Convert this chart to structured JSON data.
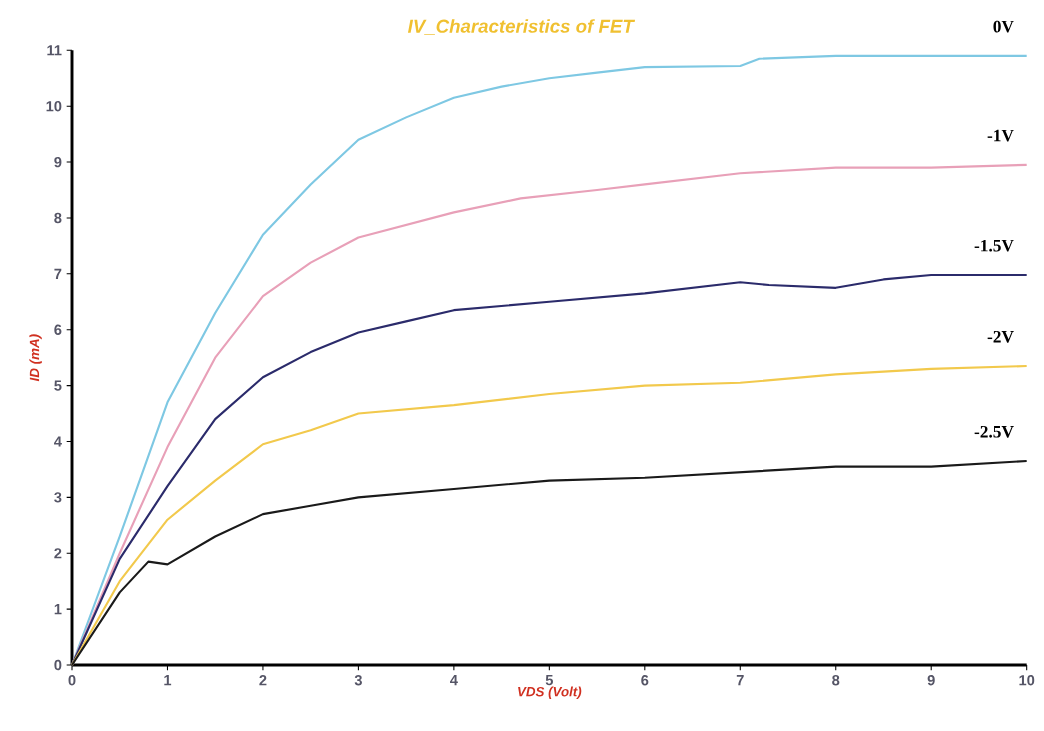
{
  "chart_data": {
    "type": "line",
    "title": "IV_Characteristics of FET",
    "xlabel": "VDS (Volt)",
    "ylabel": "ID (mA)",
    "xlim": [
      0,
      10
    ],
    "ylim": [
      0,
      11
    ],
    "xticks": [
      0,
      1,
      2,
      3,
      4,
      5,
      6,
      7,
      8,
      9,
      10
    ],
    "yticks": [
      0,
      1,
      2,
      3,
      4,
      5,
      6,
      7,
      8,
      9,
      10,
      11
    ],
    "series": [
      {
        "name": "0V",
        "color": "#7ec8e3",
        "x": [
          0,
          0.5,
          1,
          1.5,
          2,
          2.5,
          3,
          3.5,
          4,
          4.5,
          5,
          5.5,
          6,
          7,
          7.2,
          8,
          9,
          10
        ],
        "values": [
          0,
          2.3,
          4.7,
          6.3,
          7.7,
          8.6,
          9.4,
          9.8,
          10.15,
          10.35,
          10.5,
          10.6,
          10.7,
          10.72,
          10.85,
          10.9,
          10.9,
          10.9
        ]
      },
      {
        "name": "-1V",
        "color": "#e8a0b8",
        "x": [
          0,
          0.5,
          1,
          1.5,
          2,
          2.5,
          3,
          4,
          4.7,
          5.5,
          6,
          7,
          8,
          9,
          10
        ],
        "values": [
          0,
          2.0,
          3.9,
          5.5,
          6.6,
          7.2,
          7.65,
          8.1,
          8.35,
          8.5,
          8.6,
          8.8,
          8.9,
          8.9,
          8.95
        ]
      },
      {
        "name": "-1.5V",
        "color": "#2b2b6b",
        "x": [
          0,
          0.5,
          1,
          1.5,
          2,
          2.5,
          3,
          3.5,
          4,
          5,
          6,
          7,
          7.3,
          8,
          8.5,
          9,
          10
        ],
        "values": [
          0,
          1.9,
          3.2,
          4.4,
          5.15,
          5.6,
          5.95,
          6.15,
          6.35,
          6.5,
          6.65,
          6.85,
          6.8,
          6.75,
          6.9,
          6.98,
          6.98
        ]
      },
      {
        "name": "-2V",
        "color": "#f2c94c",
        "x": [
          0,
          0.5,
          1,
          1.5,
          2,
          2.5,
          3,
          4,
          5,
          6,
          7,
          8,
          9,
          10
        ],
        "values": [
          0,
          1.5,
          2.6,
          3.3,
          3.95,
          4.2,
          4.5,
          4.65,
          4.85,
          5.0,
          5.05,
          5.2,
          5.3,
          5.35
        ]
      },
      {
        "name": "-2.5V",
        "color": "#1a1a1a",
        "x": [
          0,
          0.5,
          0.8,
          1,
          1.5,
          2,
          2.5,
          3,
          4,
          5,
          6,
          7,
          8,
          9,
          10
        ],
        "values": [
          0,
          1.3,
          1.85,
          1.8,
          2.3,
          2.7,
          2.85,
          3.0,
          3.15,
          3.3,
          3.35,
          3.45,
          3.55,
          3.55,
          3.65
        ]
      }
    ]
  }
}
